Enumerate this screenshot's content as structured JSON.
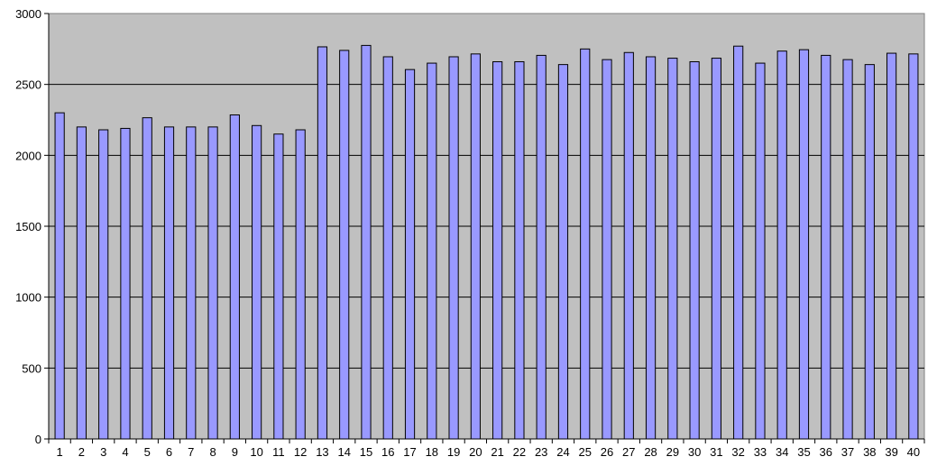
{
  "chart_data": {
    "type": "bar",
    "categories": [
      "1",
      "2",
      "3",
      "4",
      "5",
      "6",
      "7",
      "8",
      "9",
      "10",
      "11",
      "12",
      "13",
      "14",
      "15",
      "16",
      "17",
      "18",
      "19",
      "20",
      "21",
      "22",
      "23",
      "24",
      "25",
      "26",
      "27",
      "28",
      "29",
      "30",
      "31",
      "32",
      "33",
      "34",
      "35",
      "36",
      "37",
      "38",
      "39",
      "40"
    ],
    "values": [
      2300,
      2200,
      2180,
      2190,
      2265,
      2200,
      2200,
      2200,
      2285,
      2210,
      2150,
      2180,
      2765,
      2740,
      2775,
      2695,
      2605,
      2650,
      2695,
      2715,
      2660,
      2660,
      2705,
      2640,
      2750,
      2675,
      2725,
      2695,
      2685,
      2660,
      2685,
      2770,
      2650,
      2735,
      2745,
      2705,
      2675,
      2640,
      2720,
      2715
    ],
    "ylim": [
      0,
      3000
    ],
    "yticks": [
      0,
      500,
      1000,
      1500,
      2000,
      2500,
      3000
    ],
    "grid": true,
    "legend": "none",
    "colors": {
      "plot_background": "#c0c0c0",
      "bar_fill": "#9999ff",
      "bar_stroke": "#000000",
      "gridline": "#000000",
      "axis": "#000000"
    }
  }
}
